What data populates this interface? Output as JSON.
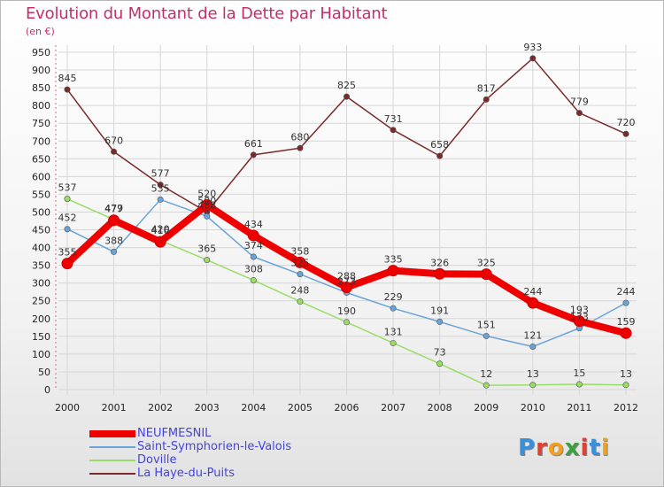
{
  "title": "Evolution du Montant de la Dette par Habitant",
  "unit": "(en €)",
  "logo_text": "Proxiti",
  "colors": {
    "title": "#c0306a",
    "grid": "#d6d6d6",
    "axis_text": "#222222",
    "legend_text": "#4444dd"
  },
  "chart_data": {
    "type": "line",
    "title": "Evolution du Montant de la Dette par Habitant",
    "ylabel": "(en €)",
    "xlabel": "",
    "ylim": [
      0,
      950
    ],
    "yticks": [
      0,
      50,
      100,
      150,
      200,
      250,
      300,
      350,
      400,
      450,
      500,
      550,
      600,
      650,
      700,
      750,
      800,
      850,
      900,
      950
    ],
    "grid": true,
    "legend_position": "bottom-left",
    "x": [
      "2000",
      "2001",
      "2002",
      "2003",
      "2004",
      "2005",
      "2006",
      "2007",
      "2008",
      "2009",
      "2010",
      "2011",
      "2012"
    ],
    "series": [
      {
        "name": "NEUFMESNIL",
        "color": "#ee0000",
        "width": 8,
        "values": [
          355,
          477,
          416,
          520,
          434,
          358,
          288,
          335,
          326,
          325,
          244,
          193,
          159
        ],
        "labels": [
          "355",
          "477",
          "416",
          "520",
          "434",
          "358",
          "288",
          "335",
          "326",
          "325",
          "244",
          "193",
          "159"
        ]
      },
      {
        "name": "Saint-Symphorien-le-Valois",
        "color": "#6aa3d8",
        "width": 1.5,
        "values": [
          452,
          388,
          535,
          488,
          374,
          325,
          273,
          229,
          191,
          151,
          121,
          173,
          244
        ],
        "labels": [
          "452",
          "388",
          "535",
          "488",
          "374",
          "325",
          "273",
          "229",
          "191",
          "151",
          "121",
          "173",
          "244"
        ]
      },
      {
        "name": "Doville",
        "color": "#99dd66",
        "width": 1.5,
        "values": [
          537,
          479,
          420,
          365,
          308,
          248,
          190,
          131,
          73,
          12,
          13,
          15,
          13
        ],
        "labels": [
          "537",
          "479",
          "420",
          "365",
          "308",
          "248",
          "190",
          "131",
          "73",
          "12",
          "13",
          "15",
          "13"
        ]
      },
      {
        "name": "La Haye-du-Puits",
        "color": "#7a2a2a",
        "width": 1.5,
        "values": [
          845,
          670,
          577,
          500,
          661,
          680,
          825,
          731,
          658,
          817,
          933,
          779,
          720
        ],
        "labels": [
          "845",
          "670",
          "577",
          "500",
          "661",
          "680",
          "825",
          "731",
          "658",
          "817",
          "933",
          "779",
          "720"
        ]
      }
    ]
  }
}
